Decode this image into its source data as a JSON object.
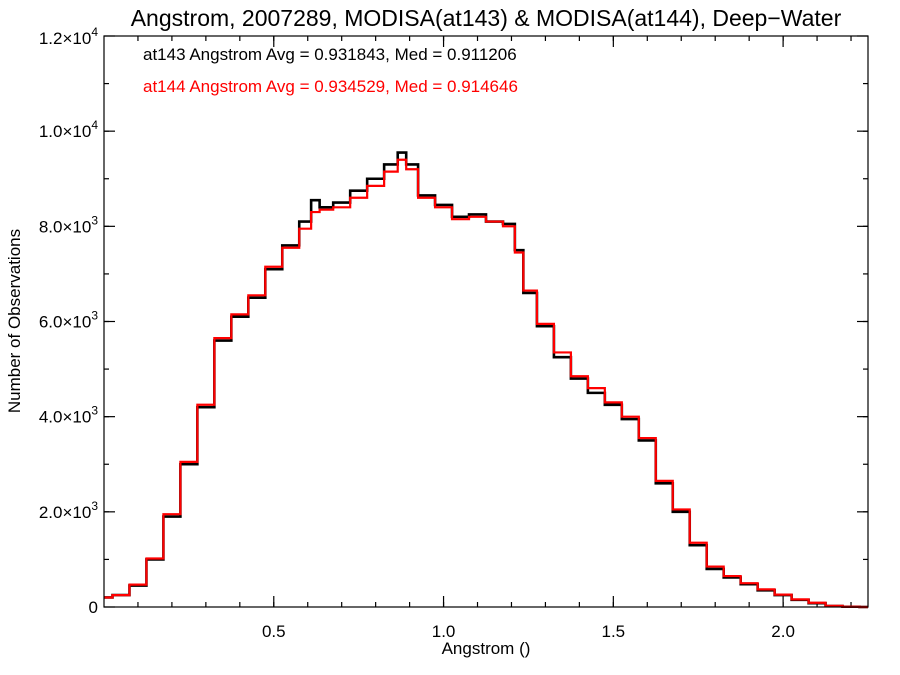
{
  "chart_data": {
    "type": "line",
    "title": "Angstrom, 2007289, MODISA(at143) & MODISA(at144), Deep−Water",
    "xlabel": "Angstrom ()",
    "ylabel": "Number of Observations",
    "xlim": [
      0.0,
      2.25
    ],
    "ylim": [
      0,
      12000
    ],
    "x_ticks": [
      {
        "value": 0.5,
        "label": "0.5"
      },
      {
        "value": 1.0,
        "label": "1.0"
      },
      {
        "value": 1.5,
        "label": "1.5"
      },
      {
        "value": 2.0,
        "label": "2.0"
      }
    ],
    "y_ticks": [
      {
        "value": 0,
        "label": "0",
        "exp": ""
      },
      {
        "value": 2000,
        "label": "2.0×10",
        "exp": "3"
      },
      {
        "value": 4000,
        "label": "4.0×10",
        "exp": "3"
      },
      {
        "value": 6000,
        "label": "6.0×10",
        "exp": "3"
      },
      {
        "value": 8000,
        "label": "8.0×10",
        "exp": "3"
      },
      {
        "value": 10000,
        "label": "1.0×10",
        "exp": "4"
      },
      {
        "value": 12000,
        "label": "1.2×10",
        "exp": "4"
      }
    ],
    "x_minor_step": 0.1,
    "y_minor_step": 1000,
    "step_style": "histogram",
    "grid": false,
    "annotations": [
      {
        "text": "at143 Angstrom Avg = 0.931843, Med = 0.911206",
        "color": "#000000"
      },
      {
        "text": "at144 Angstrom Avg = 0.934529, Med = 0.914646",
        "color": "#ff0000"
      }
    ],
    "series": [
      {
        "name": "at143",
        "color": "#000000",
        "x": [
          0.0,
          0.05,
          0.1,
          0.15,
          0.2,
          0.25,
          0.3,
          0.35,
          0.4,
          0.45,
          0.5,
          0.55,
          0.6,
          0.62,
          0.65,
          0.7,
          0.75,
          0.8,
          0.85,
          0.88,
          0.9,
          0.95,
          1.0,
          1.05,
          1.1,
          1.15,
          1.2,
          1.22,
          1.25,
          1.3,
          1.35,
          1.4,
          1.45,
          1.5,
          1.55,
          1.6,
          1.65,
          1.7,
          1.75,
          1.8,
          1.85,
          1.9,
          1.95,
          2.0,
          2.05,
          2.1,
          2.15,
          2.2,
          2.25
        ],
        "values": [
          200,
          250,
          450,
          1000,
          1900,
          3000,
          4200,
          5600,
          6100,
          6500,
          7100,
          7600,
          8100,
          8550,
          8400,
          8500,
          8750,
          9000,
          9300,
          9550,
          9300,
          8650,
          8450,
          8200,
          8250,
          8100,
          8050,
          7500,
          6600,
          5900,
          5250,
          4800,
          4500,
          4250,
          3950,
          3500,
          2600,
          2000,
          1300,
          800,
          620,
          480,
          350,
          250,
          150,
          80,
          20,
          5,
          0
        ]
      },
      {
        "name": "at144",
        "color": "#ff0000",
        "x": [
          0.0,
          0.05,
          0.1,
          0.15,
          0.2,
          0.25,
          0.3,
          0.35,
          0.4,
          0.45,
          0.5,
          0.55,
          0.6,
          0.62,
          0.65,
          0.7,
          0.75,
          0.8,
          0.85,
          0.88,
          0.9,
          0.95,
          1.0,
          1.05,
          1.1,
          1.15,
          1.2,
          1.22,
          1.25,
          1.3,
          1.35,
          1.4,
          1.45,
          1.5,
          1.55,
          1.6,
          1.65,
          1.7,
          1.75,
          1.8,
          1.85,
          1.9,
          1.95,
          2.0,
          2.05,
          2.1,
          2.15,
          2.2,
          2.25
        ],
        "values": [
          200,
          250,
          470,
          1020,
          1950,
          3050,
          4250,
          5650,
          6150,
          6550,
          7150,
          7550,
          7950,
          8300,
          8350,
          8400,
          8600,
          8850,
          9150,
          9400,
          9200,
          8600,
          8400,
          8150,
          8200,
          8100,
          8000,
          7450,
          6650,
          5950,
          5350,
          4850,
          4600,
          4300,
          4000,
          3550,
          2650,
          2050,
          1350,
          850,
          650,
          500,
          370,
          260,
          160,
          90,
          25,
          5,
          0
        ]
      }
    ]
  }
}
